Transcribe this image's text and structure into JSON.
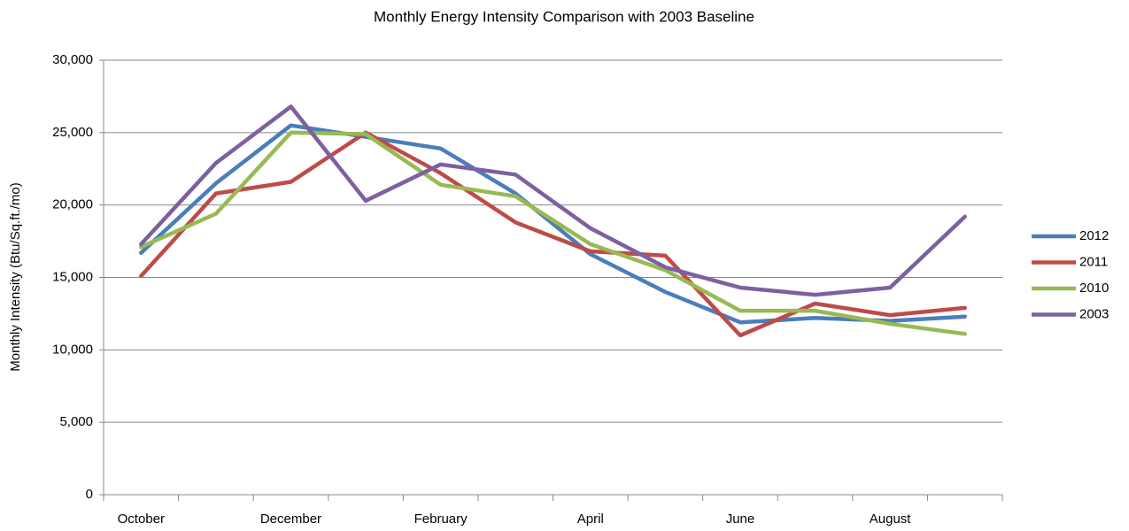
{
  "chart_data": {
    "type": "line",
    "title": "Monthly Energy Intensity Comparison with 2003 Baseline",
    "y_label": "Monthly Intensity (Btu/Sq.ft./mo)",
    "categories": [
      "October",
      null,
      "December",
      null,
      "February",
      null,
      "April",
      null,
      "June",
      null,
      "August",
      null
    ],
    "series": [
      {
        "name": "2012",
        "color": "#4a7ebb",
        "values": [
          16700,
          21500,
          25500,
          24700,
          23900,
          20800,
          16600,
          14000,
          11900,
          12200,
          12000,
          12300
        ]
      },
      {
        "name": "2011",
        "color": "#be4b48",
        "values": [
          15100,
          20800,
          21600,
          25000,
          22200,
          18800,
          16800,
          16500,
          11000,
          13200,
          12400,
          12900
        ]
      },
      {
        "name": "2010",
        "color": "#98b954",
        "values": [
          17100,
          19400,
          25000,
          24900,
          21400,
          20600,
          17300,
          15500,
          12700,
          12700,
          11800,
          11100
        ]
      },
      {
        "name": "2003",
        "color": "#7d60a0",
        "values": [
          17300,
          22900,
          26800,
          20300,
          22800,
          22100,
          18400,
          15700,
          14300,
          13800,
          14300,
          19200
        ]
      }
    ],
    "ylim": [
      0,
      30000
    ],
    "yticks": [
      0,
      {
        "value": 5000,
        "label": "5,000"
      },
      {
        "value": 10000,
        "label": "10,000"
      },
      {
        "value": 15000,
        "label": "15,000"
      },
      {
        "value": 20000,
        "label": "20,000"
      },
      {
        "value": 25000,
        "label": "25,000"
      },
      {
        "value": 30000,
        "label": "30,000"
      }
    ],
    "grid": true,
    "legend": "right"
  }
}
